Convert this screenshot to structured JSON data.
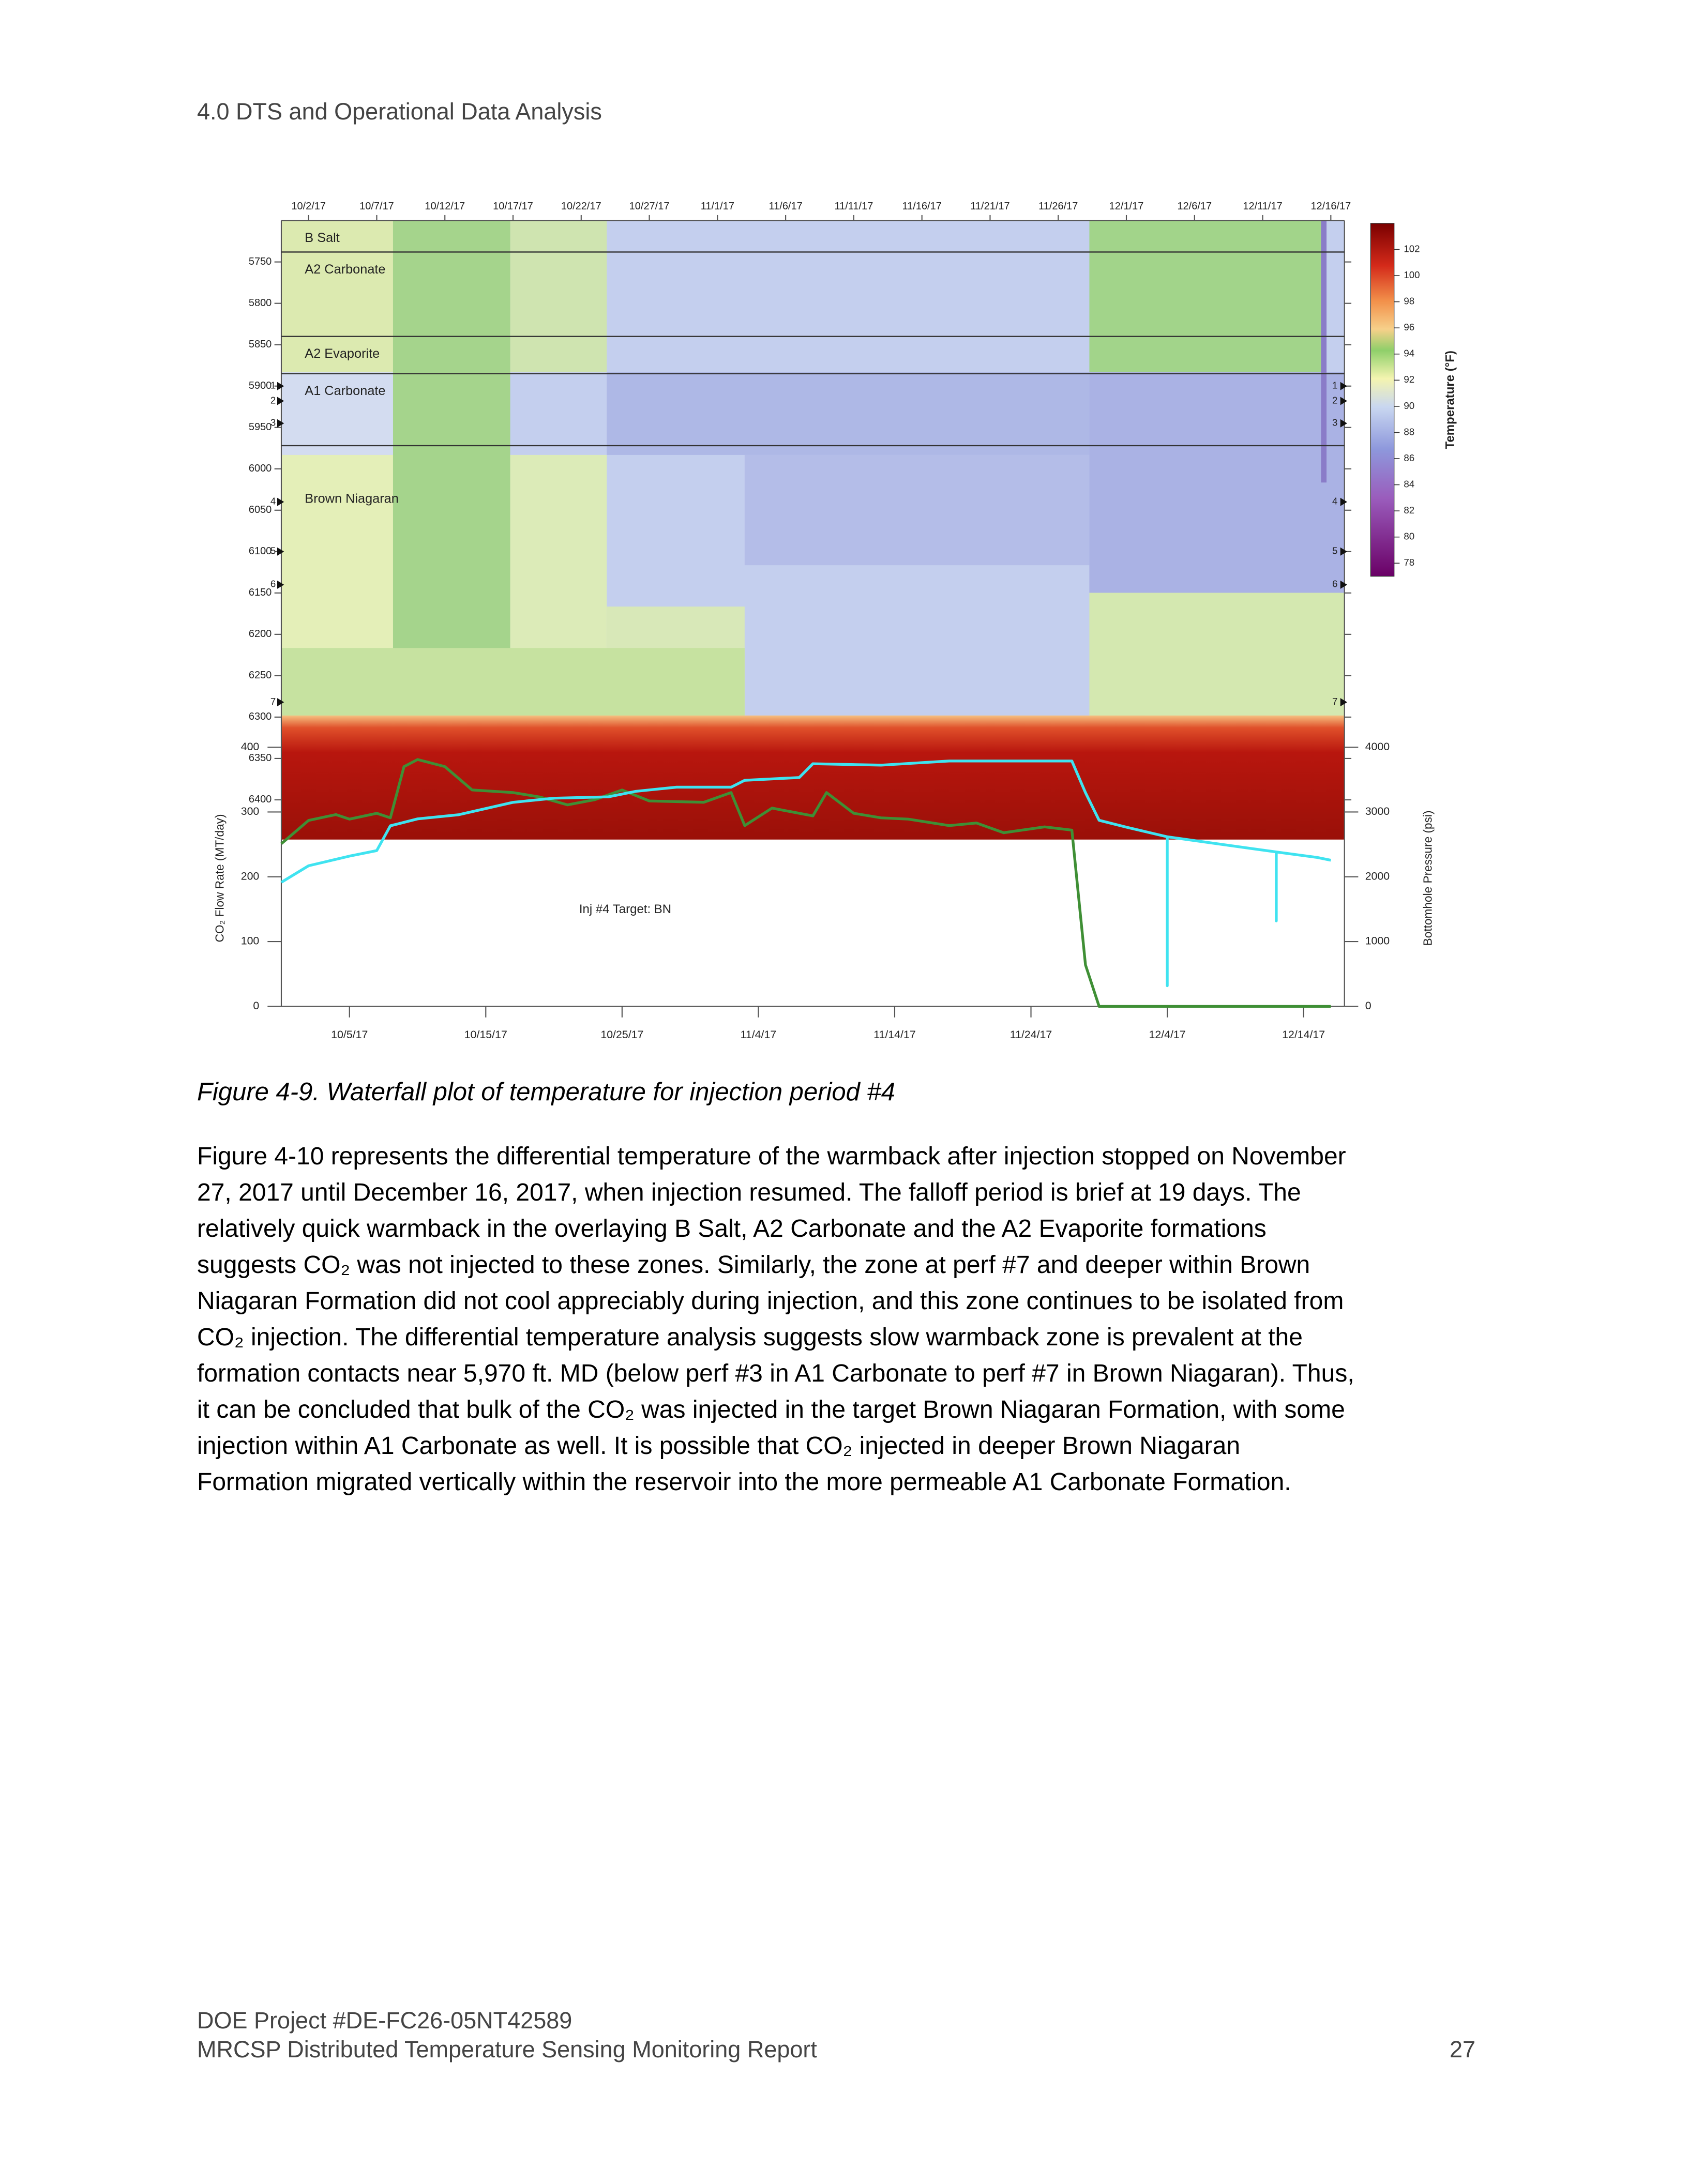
{
  "header": "4.0 DTS and Operational Data Analysis",
  "chart_data": [
    {
      "type": "heatmap",
      "xlim": [
        "9/30/17",
        "12/17/17"
      ],
      "xticks": [
        "10/2/17",
        "10/7/17",
        "10/12/17",
        "10/17/17",
        "10/22/17",
        "10/27/17",
        "11/1/17",
        "11/6/17",
        "11/11/17",
        "11/16/17",
        "11/21/17",
        "11/26/17",
        "12/1/17",
        "12/6/17",
        "12/11/17",
        "12/16/17"
      ],
      "ylim": [
        5700,
        6448
      ],
      "yticks": [
        5750,
        5800,
        5850,
        5900,
        5950,
        6000,
        6050,
        6100,
        6150,
        6200,
        6250,
        6300,
        6350,
        6400
      ],
      "zones": [
        "B Salt",
        "A2 Carbonate",
        "A2 Evaporite",
        "A1 Carbonate",
        "Brown Niagaran"
      ],
      "zone_boundaries": [
        5738,
        5840,
        5885,
        5972
      ],
      "perforations": {
        "labels": [
          "1",
          "2",
          "3",
          "4",
          "5",
          "6",
          "7"
        ],
        "depths": [
          5900,
          5918,
          5945,
          6040,
          6100,
          6140,
          6282
        ]
      },
      "colorbar": {
        "label": "Temperature (°F)",
        "clim": [
          77,
          104
        ],
        "ticks": [
          78,
          80,
          82,
          84,
          86,
          88,
          90,
          92,
          94,
          96,
          98,
          100,
          102
        ]
      }
    },
    {
      "type": "line",
      "xlim": [
        "9/30/17",
        "12/17/17"
      ],
      "xticks": [
        "10/5/17",
        "10/15/17",
        "10/25/17",
        "11/4/17",
        "11/14/17",
        "11/24/17",
        "12/4/17",
        "12/14/17"
      ],
      "ylabel": "CO₂ Flow Rate (MT/day)",
      "ylim": [
        0,
        400
      ],
      "yticks": [
        0,
        100,
        200,
        300,
        400
      ],
      "y2label": "Bottomhole Pressure (psi)",
      "y2lim": [
        0,
        4000
      ],
      "y2ticks": [
        0,
        1000,
        2000,
        3000,
        4000
      ],
      "annotation": "Inj #4 Target: BN",
      "series": [
        {
          "color": "#3f8f35",
          "x": [
            "9/30/17",
            "10/2/17",
            "10/4/17",
            "10/5/17",
            "10/7/17",
            "10/8/17",
            "10/9/17",
            "10/10/17",
            "10/12/17",
            "10/14/17",
            "10/17/17",
            "10/19/17",
            "10/21/17",
            "10/23/17",
            "10/25/17",
            "10/27/17",
            "10/31/17",
            "11/2/17",
            "11/3/17",
            "11/5/17",
            "11/6/17",
            "11/8/17",
            "11/9/17",
            "11/11/17",
            "11/13/17",
            "11/15/17",
            "11/18/17",
            "11/20/17",
            "11/22/17",
            "11/25/17",
            "11/27/17",
            "11/28/17",
            "11/29/17",
            "12/16/17"
          ],
          "values": [
            251,
            287,
            296,
            289,
            298,
            291,
            370,
            381,
            370,
            334,
            330,
            323,
            311,
            319,
            334,
            317,
            315,
            330,
            279,
            306,
            302,
            294,
            330,
            298,
            291,
            289,
            279,
            283,
            268,
            277,
            272,
            64,
            0,
            0
          ]
        },
        {
          "color": "#3fe3f0",
          "axis": "y2",
          "x": [
            "9/30/17",
            "10/2/17",
            "10/5/17",
            "10/7/17",
            "10/8/17",
            "10/10/17",
            "10/13/17",
            "10/17/17",
            "10/20/17",
            "10/24/17",
            "10/26/17",
            "10/29/17",
            "11/2/17",
            "11/3/17",
            "11/7/17",
            "11/8/17",
            "11/13/17",
            "11/18/17",
            "11/23/17",
            "11/27/17",
            "11/28/17",
            "11/29/17",
            "12/1/17",
            "12/4/17",
            "12/4/17",
            "12/4/17",
            "12/12/17",
            "12/12/17",
            "12/12/17",
            "12/15/17",
            "12/16/17"
          ],
          "values": [
            1915,
            2170,
            2319,
            2404,
            2787,
            2894,
            2957,
            3149,
            3213,
            3234,
            3319,
            3383,
            3383,
            3489,
            3532,
            3745,
            3723,
            3787,
            3787,
            3787,
            3298,
            2872,
            2766,
            2617,
            319,
            2617,
            2383,
            1319,
            2383,
            2298,
            2255
          ]
        }
      ]
    }
  ],
  "caption": "Figure 4-9. Waterfall plot of temperature for injection period #4",
  "paragraph": [
    "Figure 4-10 represents the differential temperature of the warmback after injection stopped on November",
    "27, 2017 until December 16, 2017, when injection resumed. The falloff period is brief at 19 days. The",
    "relatively quick warmback in the overlaying B Salt, A2 Carbonate and the A2 Evaporite formations",
    "suggests CO₂ was not injected to these zones. Similarly, the zone at perf #7 and deeper within Brown",
    "Niagaran Formation did not cool appreciably during injection, and this zone continues to be isolated from",
    "CO₂ injection. The differential temperature analysis suggests slow warmback zone is prevalent at the",
    "formation contacts near 5,970 ft. MD (below perf #3 in A1 Carbonate to perf #7 in Brown Niagaran). Thus,",
    "it can be concluded that bulk of the CO₂ was injected in the target Brown Niagaran Formation, with some",
    "injection within A1 Carbonate as well. It is possible that CO₂ injected in deeper Brown Niagaran",
    "Formation migrated vertically within the reservoir into the more permeable A1 Carbonate Formation."
  ],
  "footer": {
    "project": "DOE Project #DE-FC26-05NT42589",
    "report": "MRCSP Distributed Temperature Sensing Monitoring Report",
    "page": "27"
  }
}
